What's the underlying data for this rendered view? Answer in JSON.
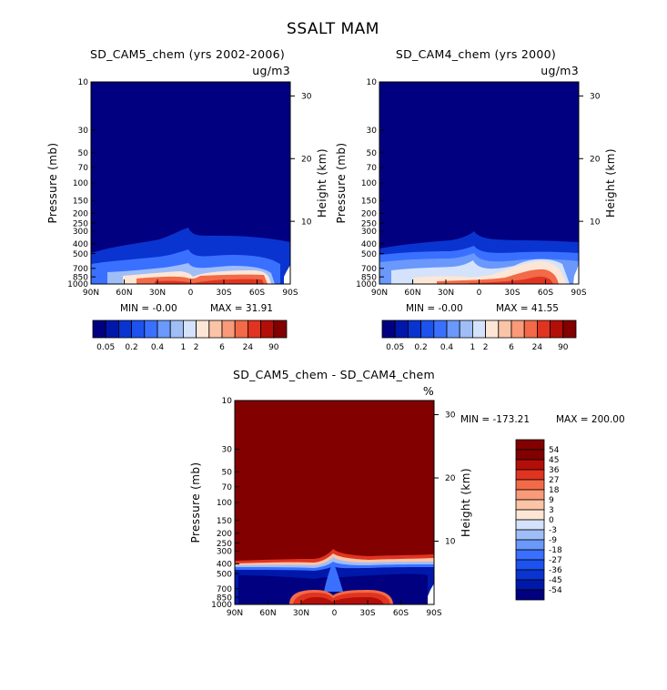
{
  "main_title": "SSALT MAM",
  "chart_data": [
    {
      "type": "heatmap",
      "title": "SD_CAM5_chem (yrs 2002-2006)",
      "units": "ug/m3",
      "ylabel": "Pressure (mb)",
      "y2label": "Height (km)",
      "xticks": [
        "90N",
        "60N",
        "30N",
        "0",
        "30S",
        "60S",
        "90S"
      ],
      "yticks": [
        "10",
        "30",
        "50",
        "70",
        "100",
        "150",
        "200",
        "250",
        "300",
        "400",
        "500",
        "700",
        "850",
        "1000"
      ],
      "y2ticks": [
        "10",
        "20",
        "30"
      ],
      "xlim": [
        "90N",
        "90S"
      ],
      "ylim_mb": [
        1000,
        10
      ],
      "stats": {
        "min_text": "MIN =  -0.00",
        "max_text": "MAX =   31.91"
      },
      "legend_levels": [
        "0.05",
        "0.2",
        "0.4",
        "1",
        "2",
        "6",
        "24",
        "90"
      ]
    },
    {
      "type": "heatmap",
      "title": "SD_CAM4_chem (yrs 2000)",
      "units": "ug/m3",
      "ylabel": "Pressure (mb)",
      "y2label": "Height (km)",
      "xticks": [
        "90N",
        "60N",
        "30N",
        "0",
        "30S",
        "60S",
        "90S"
      ],
      "yticks": [
        "10",
        "30",
        "50",
        "70",
        "100",
        "150",
        "200",
        "250",
        "300",
        "400",
        "500",
        "700",
        "850",
        "1000"
      ],
      "y2ticks": [
        "10",
        "20",
        "30"
      ],
      "xlim": [
        "90N",
        "90S"
      ],
      "ylim_mb": [
        1000,
        10
      ],
      "stats": {
        "min_text": "MIN =  -0.00",
        "max_text": "MAX =   41.55"
      },
      "legend_levels": [
        "0.05",
        "0.2",
        "0.4",
        "1",
        "2",
        "6",
        "24",
        "90"
      ]
    },
    {
      "type": "heatmap",
      "title": "SD_CAM5_chem - SD_CAM4_chem",
      "units": "%",
      "ylabel": "Pressure (mb)",
      "y2label": "Height (km)",
      "xticks": [
        "90N",
        "60N",
        "30N",
        "0",
        "30S",
        "60S",
        "90S"
      ],
      "yticks": [
        "10",
        "30",
        "50",
        "70",
        "100",
        "150",
        "200",
        "250",
        "300",
        "400",
        "500",
        "700",
        "850",
        "1000"
      ],
      "y2ticks": [
        "10",
        "20",
        "30"
      ],
      "xlim": [
        "90N",
        "90S"
      ],
      "ylim_mb": [
        1000,
        10
      ],
      "stats": {
        "min_text": "MIN = -173.21",
        "max_text": "MAX = 200.00"
      },
      "legend_levels": [
        "54",
        "45",
        "36",
        "27",
        "18",
        "9",
        "3",
        "0",
        "-3",
        "-9",
        "-18",
        "-27",
        "-36",
        "-45",
        "-54"
      ]
    }
  ],
  "colors": {
    "abs_scale": [
      "#000080",
      "#0018aa",
      "#0a34d0",
      "#1c52ee",
      "#3a70ff",
      "#6a98fb",
      "#9fbef8",
      "#d4e3fb",
      "#fde6d6",
      "#fcc4a6",
      "#f99a78",
      "#f26a48",
      "#e03420",
      "#b40e08",
      "#820000"
    ],
    "diff_scale": [
      "#000080",
      "#0018aa",
      "#0a34d0",
      "#1c52ee",
      "#3a70ff",
      "#6a98fb",
      "#9fbef8",
      "#d4e3fb",
      "#fde6d6",
      "#fcc4a6",
      "#f99a78",
      "#f26a48",
      "#e03420",
      "#b40e08",
      "#820000",
      "#820000"
    ]
  }
}
